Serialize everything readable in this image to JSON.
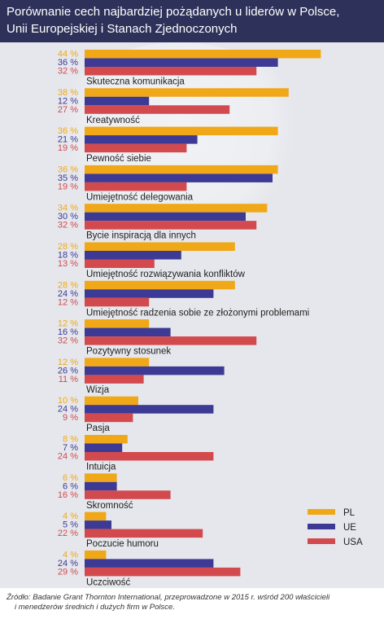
{
  "title_lines": [
    "Porównanie cech najbardziej pożądanych u liderów w Polsce,",
    "Unii Europejskiej i Stanach Zjednoczonych"
  ],
  "source_lines": [
    "Źródło: Badanie Grant Thornton International, przeprowadzone w 2015 r. wśród 200 właścicieli",
    "i menedżerów średnich i dużych firm w Polsce."
  ],
  "colors": {
    "PL": "#f0a818",
    "UE": "#3c3a94",
    "USA": "#d24a4e",
    "panel": "#e5e7ec",
    "header": "#2e3159"
  },
  "chart_data": {
    "type": "bar",
    "orientation": "horizontal",
    "categories": [
      "Skuteczna komunikacja",
      "Kreatywność",
      "Pewność siebie",
      "Umiejętność delegowania",
      "Bycie inspiracją dla innych",
      "Umiejętność rozwiązywania konfliktów",
      "Umiejętność radzenia sobie ze złożonymi problemami",
      "Pozytywny stosunek",
      "Wizja",
      "Pasja",
      "Intuicja",
      "Skromność",
      "Poczucie humoru",
      "Uczciwość"
    ],
    "series": [
      {
        "name": "PL",
        "values": [
          44,
          38,
          36,
          36,
          34,
          28,
          28,
          12,
          12,
          10,
          8,
          6,
          4,
          4
        ],
        "labels": [
          "44 %",
          "38 %",
          "36 %",
          "36 %",
          "34 %",
          "28 %",
          "28 %",
          "12 %",
          "12 %",
          "10 %",
          "8 %",
          "6 %",
          "4 %",
          "4 %"
        ]
      },
      {
        "name": "UE",
        "values": [
          36,
          12,
          21,
          35,
          30,
          18,
          24,
          16,
          26,
          24,
          7,
          6,
          5,
          24
        ],
        "labels": [
          "36 %",
          "12 %",
          "21 %",
          "35 %",
          "30 %",
          "18 %",
          "24 %",
          "16 %",
          "26 %",
          "24 %",
          "7 %",
          "6 %",
          "5 %",
          "24 %"
        ]
      },
      {
        "name": "USA",
        "values": [
          32,
          27,
          19,
          19,
          32,
          13,
          12,
          32,
          11,
          9,
          24,
          16,
          22,
          29
        ],
        "labels": [
          "32 %",
          "27 %",
          "19 %",
          "19 %",
          "32 %",
          "13 %",
          "12 %",
          "32 %",
          "11 %",
          "9 %",
          "24 %",
          "16 %",
          "22 %",
          "29 %"
        ]
      }
    ],
    "legend": [
      "PL",
      "UE",
      "USA"
    ],
    "legend_position": "bottom-right",
    "title": "",
    "xlabel": "",
    "ylabel": ""
  }
}
